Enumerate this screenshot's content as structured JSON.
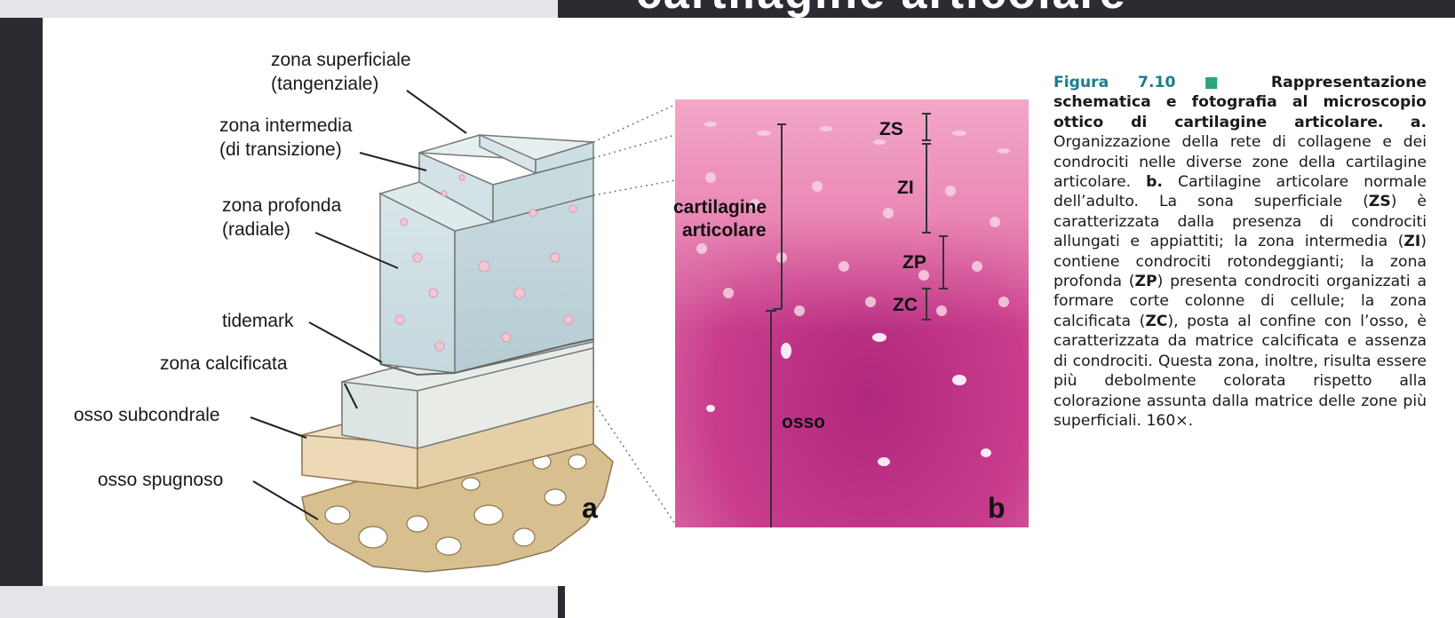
{
  "header": {
    "title_fragment": "cartilagine articolare"
  },
  "figure_a": {
    "labels": [
      "zona superficiale",
      "(tangenziale)",
      "zona intermedia",
      "(di transizione)",
      "zona profonda",
      "(radiale)",
      "tidemark",
      "zona calcificata",
      "osso subcondrale",
      "osso spugnoso"
    ],
    "panel_letter": "a"
  },
  "figure_b": {
    "zone_labels": [
      "ZS",
      "ZI",
      "ZP",
      "ZC"
    ],
    "cartilage_label_1": "cartilagine",
    "cartilage_label_2": "articolare",
    "bone_label": "osso",
    "panel_letter": "b"
  },
  "caption": {
    "head_number": "Figura 7.10",
    "head_square": "■",
    "head_title": "Rappresentazione schematica e fotografia al microscopio ottico di cartilagine articolare.",
    "part_a_label": "a.",
    "part_a_text": "Organizzazione della rete di collagene e dei condrociti nelle diverse zone della cartilagine articolare.",
    "part_b_label": "b.",
    "text_1": "Cartilagine articolare normale dell’adulto. La sona superficiale (",
    "zs": "ZS",
    "text_2": ") è caratterizzata dalla presenza di condrociti allungati e appiattiti; la zona intermedia (",
    "zi": "ZI",
    "text_3": ") contiene condrociti rotondeggianti; la zona profonda (",
    "zp": "ZP",
    "text_4": ") presenta condrociti organizzati a formare corte colonne di cellule; la zona calcificata (",
    "zc": "ZC",
    "text_5": "), posta al confine con l’osso, è caratterizzata da matrice calcificata e assenza di condrociti. Questa zona, inoltre, risulta essere più debolmente colorata rispetto alla colorazione assunta dalla matrice delle zone più superficiali. 160×."
  }
}
